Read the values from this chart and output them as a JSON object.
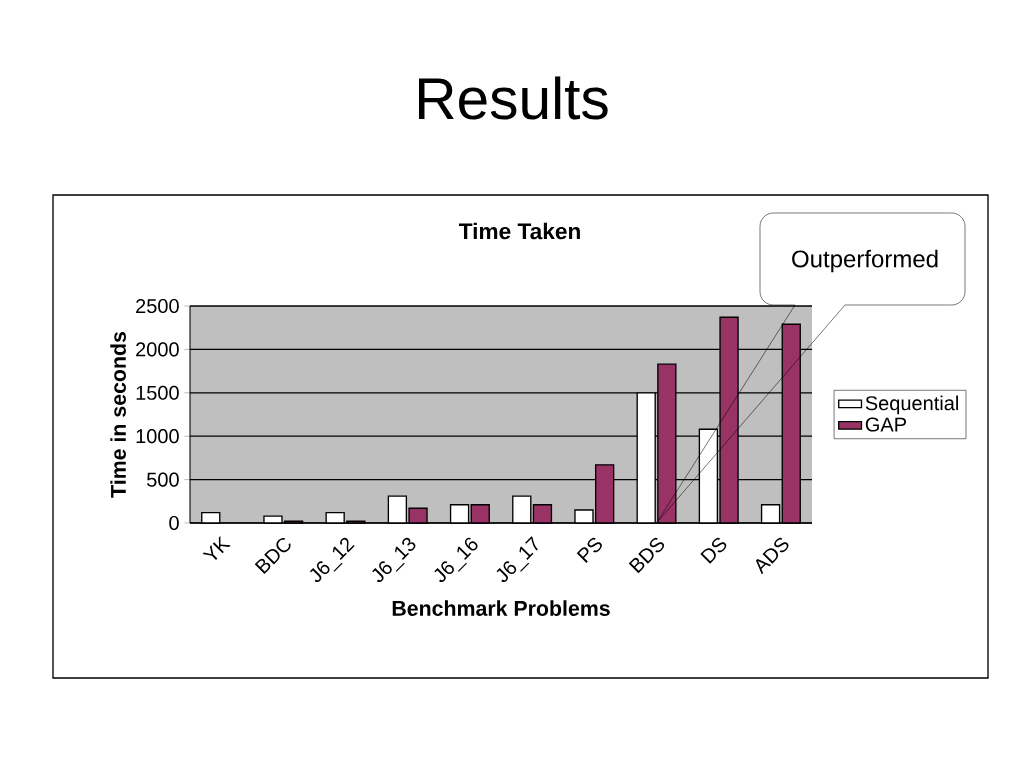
{
  "chart_data": {
    "type": "bar",
    "title": "Results",
    "subtitle": "Time Taken",
    "xlabel": "Benchmark Problems",
    "ylabel": "Time in seconds",
    "categories": [
      "YK",
      "BDC",
      "J6_12",
      "J6_13",
      "J6_16",
      "J6_17",
      "PS",
      "BDS",
      "DS",
      "ADS"
    ],
    "series": [
      {
        "name": "Sequential",
        "color": "#ffffff",
        "values": [
          120,
          80,
          120,
          310,
          210,
          310,
          150,
          1500,
          1080,
          210
        ]
      },
      {
        "name": "GAP",
        "color": "#993366",
        "values": [
          null,
          20,
          20,
          170,
          210,
          210,
          670,
          1830,
          2370,
          2290
        ]
      }
    ],
    "ylim": [
      0,
      2500
    ],
    "yticks": [
      0,
      500,
      1000,
      1500,
      2000,
      2500
    ],
    "grid": "y",
    "legend": "right",
    "annotations": [
      "Outperformed"
    ]
  }
}
